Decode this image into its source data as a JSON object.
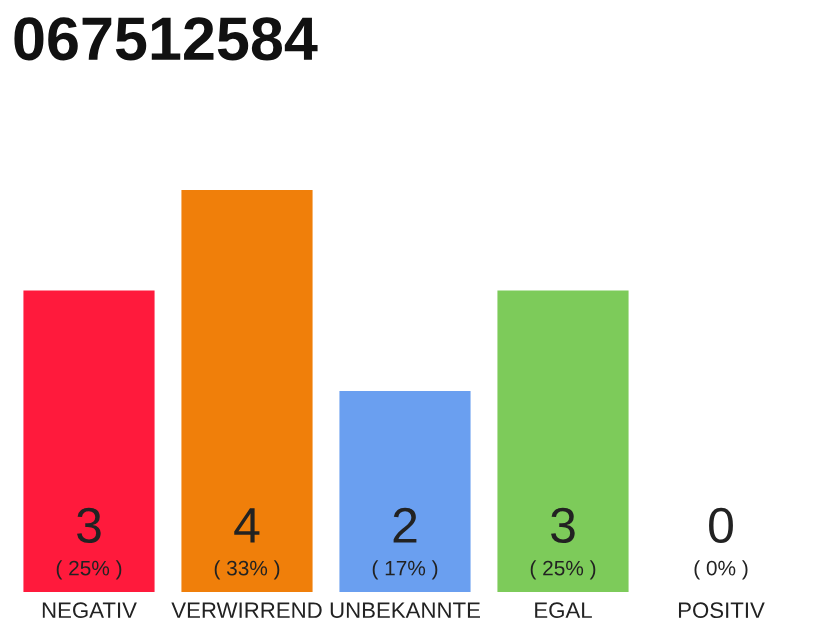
{
  "chart_data": {
    "type": "bar",
    "title": "067512584",
    "categories": [
      "NEGATIV",
      "VERWIRREND",
      "UNBEKANNTE",
      "EGAL",
      "POSITIV"
    ],
    "values": [
      3,
      4,
      2,
      3,
      0
    ],
    "colors": [
      "#ff1a3c",
      "#f07f0a",
      "#6a9ff0",
      "#7dcb5a",
      "#c8c8c8"
    ],
    "value_labels": [
      "3\n( 25% )",
      "4\n( 33% )",
      "2\n( 17% )",
      "3\n( 25% )",
      "0\n( 0% )"
    ],
    "ylim": [
      0,
      4
    ],
    "tick_labels": "x",
    "grid": false,
    "legend": false
  }
}
